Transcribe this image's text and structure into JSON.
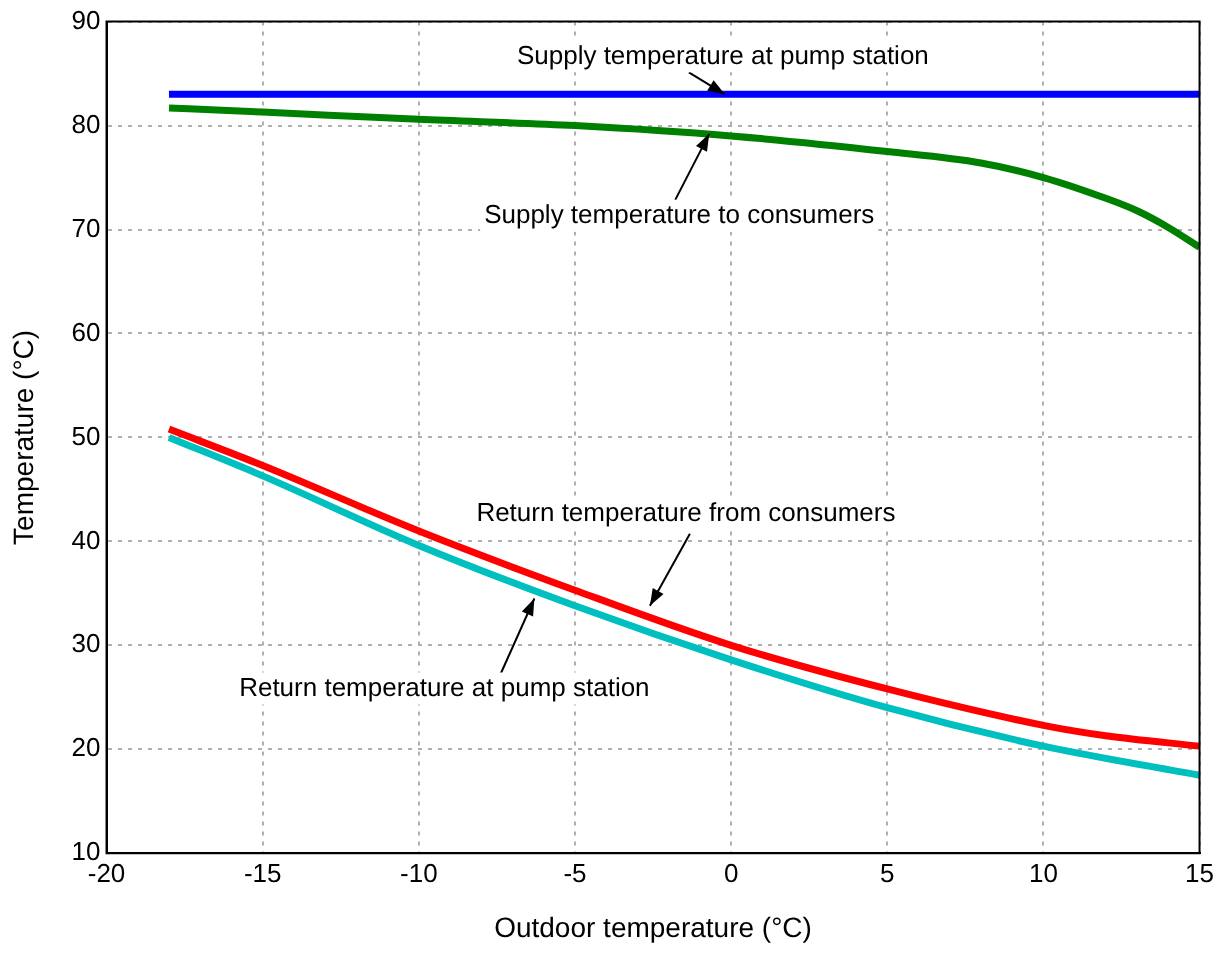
{
  "chart_data": {
    "type": "line",
    "xlabel": "Outdoor temperature (°C)",
    "ylabel": "Temperature (°C)",
    "xlim": [
      -20,
      15
    ],
    "xticks": [
      -20,
      -15,
      -10,
      -5,
      0,
      5,
      10,
      15
    ],
    "ylim": [
      10,
      90
    ],
    "yticks": [
      10,
      20,
      30,
      40,
      50,
      60,
      70,
      80,
      90
    ],
    "grid": true,
    "legend": false,
    "marker": "none",
    "line_style": "solid",
    "series": [
      {
        "color": "#0000ff",
        "x": [
          -18,
          -15,
          -10,
          -5,
          0,
          5,
          10,
          15
        ],
        "values": [
          83,
          83,
          83,
          83,
          83,
          83,
          83,
          83
        ]
      },
      {
        "color": "#008000",
        "x": [
          -18,
          -15,
          -10,
          -5,
          0,
          5,
          8,
          10,
          12,
          13,
          14,
          15
        ],
        "values": [
          81.7,
          81.3,
          80.6,
          80,
          79,
          77.5,
          76.4,
          75,
          73,
          71.8,
          70.2,
          68.3
        ]
      },
      {
        "color": "#ff0000",
        "x": [
          -18,
          -15,
          -10,
          -5,
          0,
          5,
          10,
          12,
          15
        ],
        "values": [
          50.8,
          47.3,
          41,
          35.3,
          30,
          25.8,
          22.3,
          21.3,
          20.3
        ]
      },
      {
        "color": "#00bfbf",
        "x": [
          -18,
          -15,
          -10,
          -5,
          0,
          5,
          10,
          15
        ],
        "values": [
          50,
          46.3,
          39.6,
          33.8,
          28.6,
          24,
          20.3,
          17.5
        ]
      }
    ],
    "annotations": [
      {
        "text": "Supply temperature at pump station",
        "x": -0.2,
        "y": 83
      },
      {
        "text": "Supply temperature to consumers",
        "x": -0.7,
        "y": 79.2
      },
      {
        "text": "Return temperature from consumers",
        "x": -2.6,
        "y": 33.8
      },
      {
        "text": "Return temperature at pump station",
        "x": -6.3,
        "y": 34.5
      }
    ]
  }
}
